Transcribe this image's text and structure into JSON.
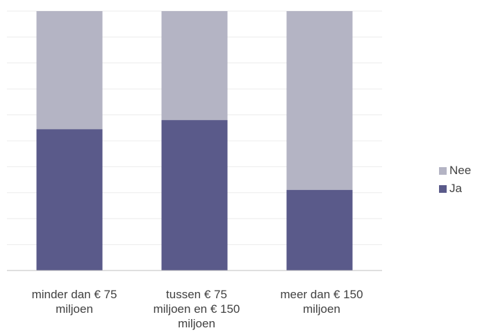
{
  "chart_data": {
    "type": "bar",
    "stacked": true,
    "percent_stacked": true,
    "categories": [
      "minder dan € 75 miljoen",
      "tussen € 75 miljoen en € 150 miljoen",
      "meer dan € 150 miljoen"
    ],
    "category_lines": [
      [
        "minder dan € 75",
        "miljoen"
      ],
      [
        "tussen € 75",
        "miljoen en € 150",
        "miljoen"
      ],
      [
        "meer dan € 150",
        "miljoen"
      ]
    ],
    "series": [
      {
        "name": "Ja",
        "values": [
          54.5,
          58,
          31.1
        ],
        "color": "#5a5a8a"
      },
      {
        "name": "Nee",
        "values": [
          45.5,
          42,
          68.9
        ],
        "color": "#b4b4c4"
      }
    ],
    "legend_order": [
      "Nee",
      "Ja"
    ],
    "ylim": [
      0,
      100
    ],
    "grid": true,
    "legend_position": "right",
    "title": "",
    "xlabel": "",
    "ylabel": ""
  }
}
